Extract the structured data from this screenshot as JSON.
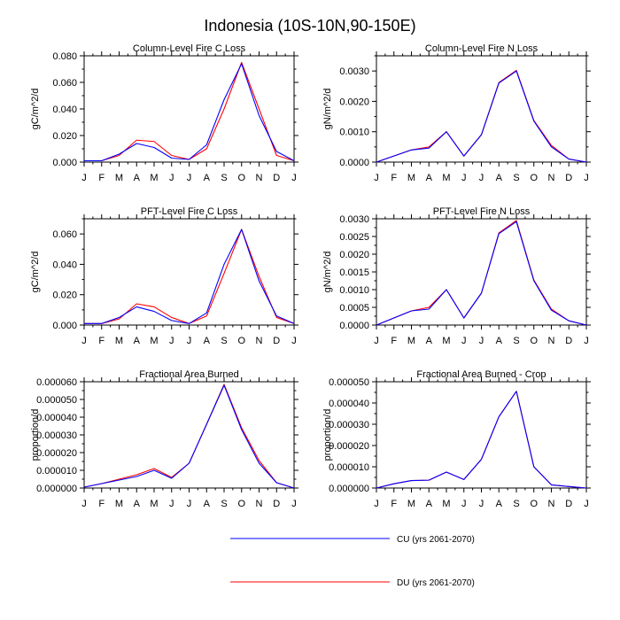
{
  "figure_title": "Indonesia (10S-10N,90-150E)",
  "legend": [
    {
      "label": "CU (yrs 2061-2070)",
      "color": "#0000ff"
    },
    {
      "label": "DU (yrs 2061-2070)",
      "color": "#ff0000"
    }
  ],
  "chart_data": [
    {
      "type": "line",
      "title": "Column-Level Fire C Loss",
      "ylabel": "gC/m^2/d",
      "categories": [
        "J",
        "F",
        "M",
        "A",
        "M",
        "J",
        "J",
        "A",
        "S",
        "O",
        "N",
        "D",
        "J"
      ],
      "ylim": [
        0,
        0.08
      ],
      "yticks": [
        0,
        0.02,
        0.04,
        0.06,
        0.08
      ],
      "yticklabels": [
        "0.000",
        "0.020",
        "0.040",
        "0.060",
        "0.080"
      ],
      "series": [
        {
          "name": "CU (yrs 2061-2070)",
          "color": "#0000ff",
          "values": [
            0.001,
            0.001,
            0.006,
            0.014,
            0.011,
            0.003,
            0.002,
            0.013,
            0.047,
            0.074,
            0.035,
            0.008,
            0.001
          ]
        },
        {
          "name": "DU (yrs 2061-2070)",
          "color": "#ff0000",
          "values": [
            0.001,
            0.001,
            0.005,
            0.0165,
            0.0155,
            0.005,
            0.002,
            0.01,
            0.04,
            0.075,
            0.04,
            0.005,
            0.001
          ]
        }
      ]
    },
    {
      "type": "line",
      "title": "Column-Level Fire N Loss",
      "ylabel": "gN/m^2/d",
      "categories": [
        "J",
        "F",
        "M",
        "A",
        "M",
        "J",
        "J",
        "A",
        "S",
        "O",
        "N",
        "D",
        "J"
      ],
      "ylim": [
        0,
        0.0035
      ],
      "yticks": [
        0,
        0.001,
        0.002,
        0.003
      ],
      "yticklabels": [
        "0.0000",
        "0.0010",
        "0.0020",
        "0.0030"
      ],
      "series": [
        {
          "name": "CU (yrs 2061-2070)",
          "color": "#0000ff",
          "values": [
            0.0,
            0.0002,
            0.0004,
            0.00046,
            0.001,
            0.0002,
            0.0009,
            0.0026,
            0.003,
            0.00135,
            0.0005,
            0.0001,
            0.0
          ]
        },
        {
          "name": "DU (yrs 2061-2070)",
          "color": "#ff0000",
          "values": [
            0.0,
            0.0002,
            0.0004,
            0.0005,
            0.001,
            0.0002,
            0.0009,
            0.00262,
            0.00302,
            0.00137,
            0.00055,
            0.0001,
            0.0
          ]
        }
      ]
    },
    {
      "type": "line",
      "title": "PFT-Level Fire C Loss",
      "ylabel": "gC/m^2/d",
      "categories": [
        "J",
        "F",
        "M",
        "A",
        "M",
        "J",
        "J",
        "A",
        "S",
        "O",
        "N",
        "D",
        "J"
      ],
      "ylim": [
        0,
        0.07
      ],
      "yticks": [
        0,
        0.02,
        0.04,
        0.06
      ],
      "yticklabels": [
        "0.000",
        "0.020",
        "0.040",
        "0.060"
      ],
      "series": [
        {
          "name": "CU (yrs 2061-2070)",
          "color": "#0000ff",
          "values": [
            0.001,
            0.001,
            0.005,
            0.012,
            0.009,
            0.003,
            0.001,
            0.008,
            0.04,
            0.063,
            0.029,
            0.006,
            0.001
          ]
        },
        {
          "name": "DU (yrs 2061-2070)",
          "color": "#ff0000",
          "values": [
            0.001,
            0.001,
            0.004,
            0.014,
            0.012,
            0.005,
            0.001,
            0.006,
            0.034,
            0.063,
            0.032,
            0.005,
            0.001
          ]
        }
      ]
    },
    {
      "type": "line",
      "title": "PFT-Level Fire N Loss",
      "ylabel": "gN/m^2/d",
      "categories": [
        "J",
        "F",
        "M",
        "A",
        "M",
        "J",
        "J",
        "A",
        "S",
        "O",
        "N",
        "D",
        "J"
      ],
      "ylim": [
        0,
        0.003
      ],
      "yticks": [
        0,
        0.0005,
        0.001,
        0.0015,
        0.002,
        0.0025,
        0.003
      ],
      "yticklabels": [
        "0.0000",
        "0.0005",
        "0.0010",
        "0.0015",
        "0.0020",
        "0.0025",
        "0.0030"
      ],
      "series": [
        {
          "name": "CU (yrs 2061-2070)",
          "color": "#0000ff",
          "values": [
            0.0,
            0.0002,
            0.0004,
            0.00045,
            0.001,
            0.0002,
            0.0009,
            0.00258,
            0.00292,
            0.00125,
            0.00042,
            0.00012,
            0.0
          ]
        },
        {
          "name": "DU (yrs 2061-2070)",
          "color": "#ff0000",
          "values": [
            0.0,
            0.0002,
            0.0004,
            0.0005,
            0.001,
            0.0002,
            0.0009,
            0.0026,
            0.00295,
            0.00127,
            0.00045,
            0.00012,
            0.0
          ]
        }
      ]
    },
    {
      "type": "line",
      "title": "Fractional Area Burned",
      "ylabel": "proportion/d",
      "categories": [
        "J",
        "F",
        "M",
        "A",
        "M",
        "J",
        "J",
        "A",
        "S",
        "O",
        "N",
        "D",
        "J"
      ],
      "ylim": [
        0,
        6e-05
      ],
      "yticks": [
        0,
        1e-05,
        2e-05,
        3e-05,
        4e-05,
        5e-05,
        6e-05
      ],
      "yticklabels": [
        "0.000000",
        "0.000010",
        "0.000020",
        "0.000030",
        "0.000040",
        "0.000050",
        "0.000060"
      ],
      "series": [
        {
          "name": "CU (yrs 2061-2070)",
          "color": "#0000ff",
          "values": [
            5e-07,
            2.5e-06,
            4.5e-06,
            6.5e-06,
            1e-05,
            5.5e-06,
            1.4e-05,
            3.6e-05,
            5.8e-05,
            3.3e-05,
            1.4e-05,
            3e-06,
            0.0
          ]
        },
        {
          "name": "DU (yrs 2061-2070)",
          "color": "#ff0000",
          "values": [
            5e-07,
            2.5e-06,
            5e-06,
            7.5e-06,
            1.1e-05,
            6e-06,
            1.4e-05,
            3.6e-05,
            5.85e-05,
            3.4e-05,
            1.55e-05,
            3e-06,
            0.0
          ]
        }
      ]
    },
    {
      "type": "line",
      "title": "Fractional Area Burned - Crop",
      "ylabel": "proportion/d",
      "categories": [
        "J",
        "F",
        "M",
        "A",
        "M",
        "J",
        "J",
        "A",
        "S",
        "O",
        "N",
        "D",
        "J"
      ],
      "ylim": [
        0,
        5e-05
      ],
      "yticks": [
        0,
        1e-05,
        2e-05,
        3e-05,
        4e-05,
        5e-05
      ],
      "yticklabels": [
        "0.000000",
        "0.000010",
        "0.000020",
        "0.000030",
        "0.000040",
        "0.000050"
      ],
      "series": [
        {
          "name": "CU (yrs 2061-2070)",
          "color": "#0000ff",
          "values": [
            0.0,
            2e-06,
            3.5e-06,
            3.7e-06,
            7.5e-06,
            4e-06,
            1.35e-05,
            3.35e-05,
            4.55e-05,
            1e-05,
            1.5e-06,
            7e-07,
            0.0
          ]
        },
        {
          "name": "DU (yrs 2061-2070)",
          "color": "#ff0000",
          "values": [
            0.0,
            2e-06,
            3.5e-06,
            3.7e-06,
            7.5e-06,
            4e-06,
            1.35e-05,
            3.35e-05,
            4.55e-05,
            1e-05,
            1.5e-06,
            7e-07,
            0.0
          ]
        }
      ]
    }
  ]
}
